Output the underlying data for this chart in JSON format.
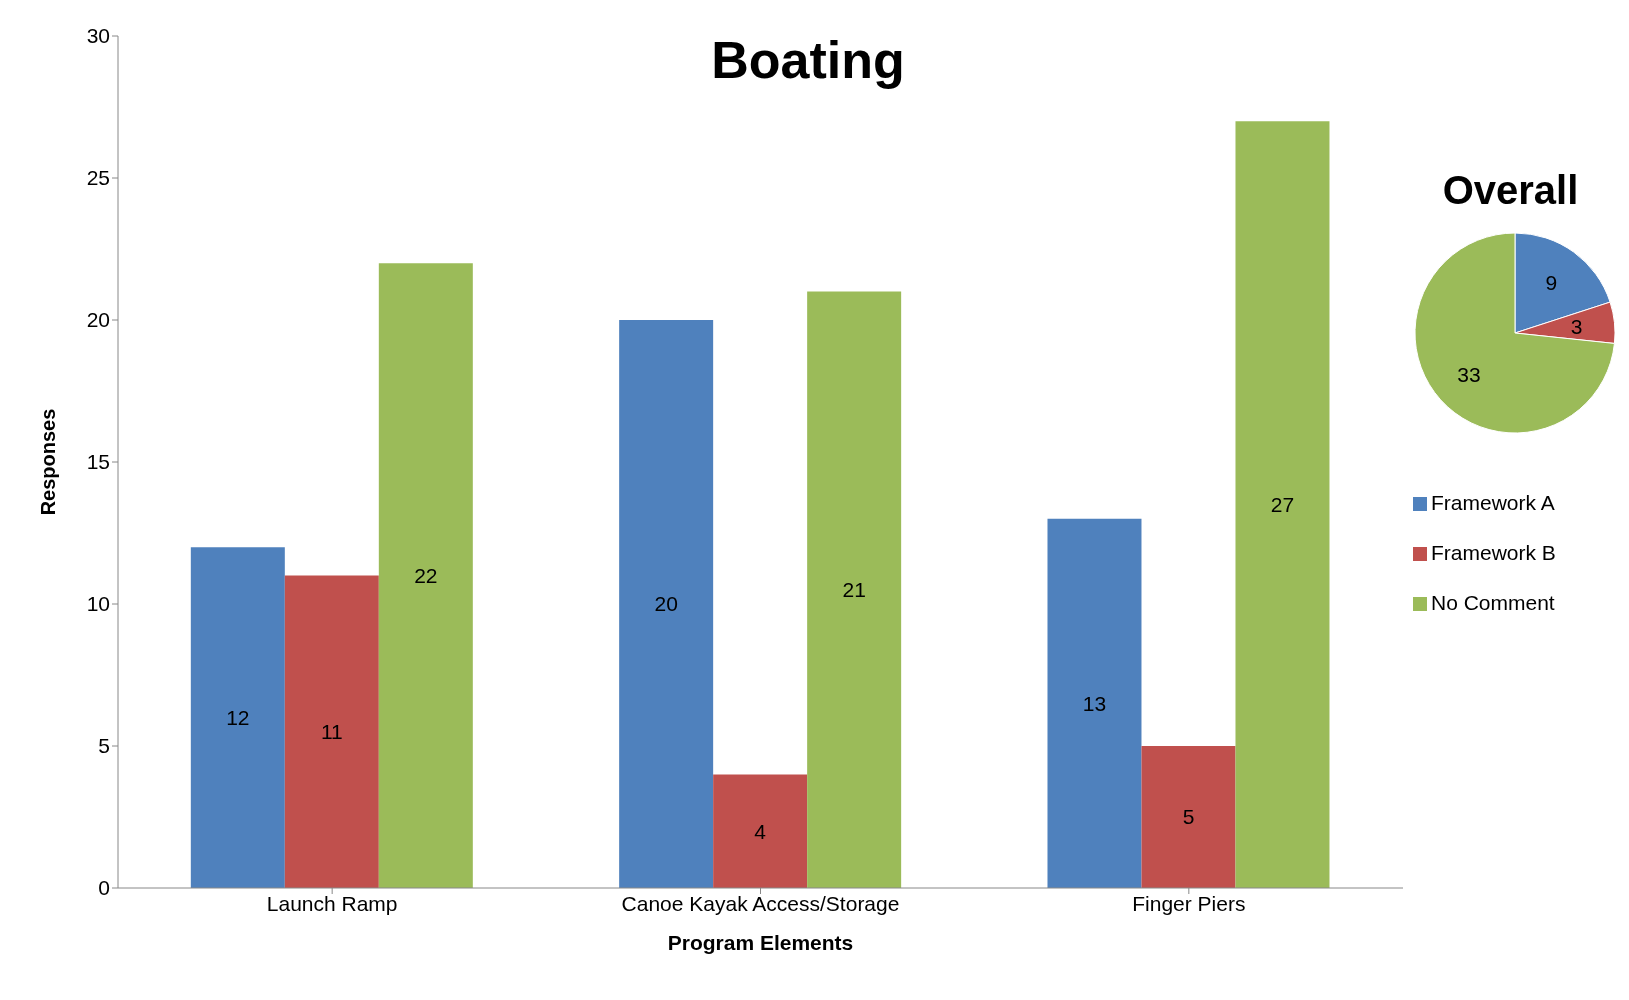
{
  "chart_data": [
    {
      "type": "bar",
      "title": "Boating",
      "xlabel": "Program Elements",
      "ylabel": "Responses",
      "categories": [
        "Launch Ramp",
        "Canoe Kayak Access/Storage",
        "Finger Piers"
      ],
      "series": [
        {
          "name": "Framework A",
          "color": "#4f81bd",
          "values": [
            12,
            20,
            13
          ]
        },
        {
          "name": "Framework B",
          "color": "#c0504d",
          "values": [
            11,
            4,
            5
          ]
        },
        {
          "name": "No Comment",
          "color": "#9bbb59",
          "values": [
            22,
            21,
            27
          ]
        }
      ],
      "ylim": [
        0,
        30
      ],
      "yticks": [
        0,
        5,
        10,
        15,
        20,
        25,
        30
      ],
      "data_labels": true,
      "legend": "right"
    },
    {
      "type": "pie",
      "title": "Overall",
      "categories": [
        null,
        null,
        null
      ],
      "values": [
        9,
        3,
        33
      ],
      "colors": [
        "#4f81bd",
        "#c0504d",
        "#9bbb59"
      ],
      "data_labels": true
    }
  ]
}
